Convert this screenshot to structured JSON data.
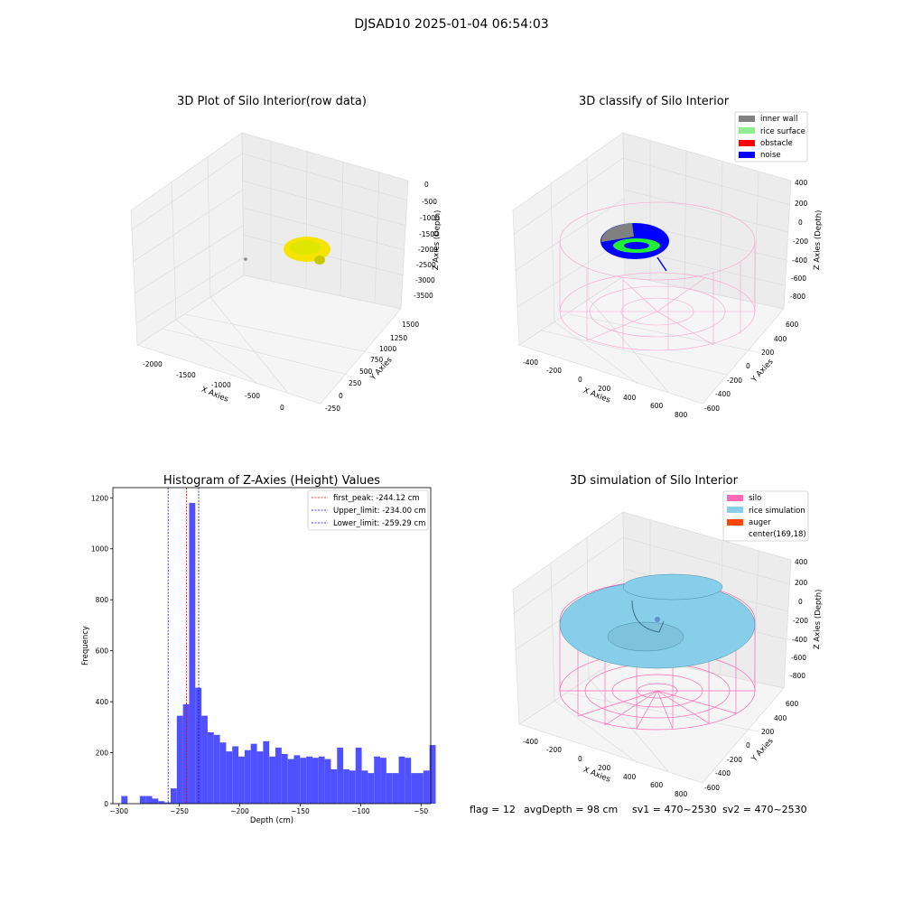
{
  "figure": {
    "title": "DJSAD10 2025-01-04 06:54:03",
    "footer": {
      "flag": "flag = 12",
      "avg": "avgDepth = 98 cm",
      "sv1": "sv1 = 470~2530",
      "sv2": "sv2 = 470~2530"
    }
  },
  "chart_data": [
    {
      "type": "scatter",
      "title": "3D Plot of Silo Interior(row data)",
      "xlabel": "X Axies",
      "ylabel": "Y Axies",
      "zlabel": "Z Axies (Depth)",
      "x_ticks": [
        "-2000",
        "-1500",
        "-1000",
        "-500",
        "0"
      ],
      "y_ticks": [
        "-250",
        "0",
        "250",
        "500",
        "750",
        "1000",
        "1250",
        "1500"
      ],
      "z_ticks": [
        "0",
        "-500",
        "-1000",
        "-1500",
        "-2000",
        "-2500",
        "-3000",
        "-3500"
      ],
      "grid": true,
      "point_color": "#e6e600"
    },
    {
      "type": "scatter",
      "title": "3D classify of Silo Interior",
      "xlabel": "X Axies",
      "ylabel": "Y Axies",
      "zlabel": "Z Axies (Depth)",
      "x_ticks": [
        "-400",
        "-200",
        "0",
        "200",
        "400",
        "600",
        "800"
      ],
      "y_ticks": [
        "-600",
        "-400",
        "-200",
        "0",
        "200",
        "400",
        "600"
      ],
      "z_ticks": [
        "400",
        "200",
        "0",
        "-200",
        "-400",
        "-600",
        "-800"
      ],
      "grid": true,
      "legend_position": "top-right",
      "legend": [
        {
          "name": "inner wall",
          "color": "#808080"
        },
        {
          "name": "rice surface",
          "color": "#90ee90"
        },
        {
          "name": "obstacle",
          "color": "#ff0000"
        },
        {
          "name": "noise",
          "color": "#0000ff"
        }
      ]
    },
    {
      "type": "bar",
      "title": "Histogram of Z-Axies (Height) Values",
      "xlabel": "Depth (cm)",
      "ylabel": "Frequency",
      "xlim": [
        -305,
        -42
      ],
      "ylim": [
        0,
        1240
      ],
      "x_ticks": [
        -300,
        -250,
        -200,
        -150,
        -100,
        -50
      ],
      "y_ticks": [
        0,
        200,
        400,
        600,
        800,
        1000,
        1200
      ],
      "bin_start": -298,
      "bin_width": 5.1,
      "values": [
        30,
        0,
        0,
        30,
        30,
        20,
        10,
        5,
        60,
        345,
        390,
        1180,
        455,
        345,
        280,
        270,
        240,
        205,
        225,
        185,
        210,
        235,
        205,
        245,
        185,
        220,
        195,
        175,
        190,
        180,
        185,
        180,
        185,
        175,
        135,
        220,
        135,
        130,
        220,
        130,
        120,
        185,
        180,
        120,
        120,
        185,
        180,
        120,
        120,
        130,
        230
      ],
      "bar_color": "#5050ff",
      "lines": [
        {
          "name": "first_peak: -244.12 cm",
          "value": -244.12,
          "color": "#ff0000"
        },
        {
          "name": "Upper_limit: -234.00 cm",
          "value": -234.0,
          "color": "#0000ff"
        },
        {
          "name": "Lower_limit: -259.29 cm",
          "value": -259.29,
          "color": "#0000ff"
        }
      ],
      "legend_position": "top-right"
    },
    {
      "type": "scatter",
      "title": "3D simulation of Silo Interior",
      "xlabel": "X Axies",
      "ylabel": "Y Axies",
      "zlabel": "Z Axies (Depth)",
      "x_ticks": [
        "-400",
        "-200",
        "0",
        "200",
        "400",
        "600",
        "800"
      ],
      "y_ticks": [
        "-600",
        "-400",
        "-200",
        "0",
        "200",
        "400",
        "600"
      ],
      "z_ticks": [
        "400",
        "200",
        "0",
        "-200",
        "-400",
        "-600",
        "-800"
      ],
      "grid": true,
      "legend_position": "top-right",
      "legend": [
        {
          "name": "silo",
          "color": "#ff69b4"
        },
        {
          "name": "rice simulation",
          "color": "#87ceeb"
        },
        {
          "name": "auger",
          "color": "#ff4500"
        },
        {
          "name": "center(169,18)",
          "color": ""
        }
      ]
    }
  ]
}
